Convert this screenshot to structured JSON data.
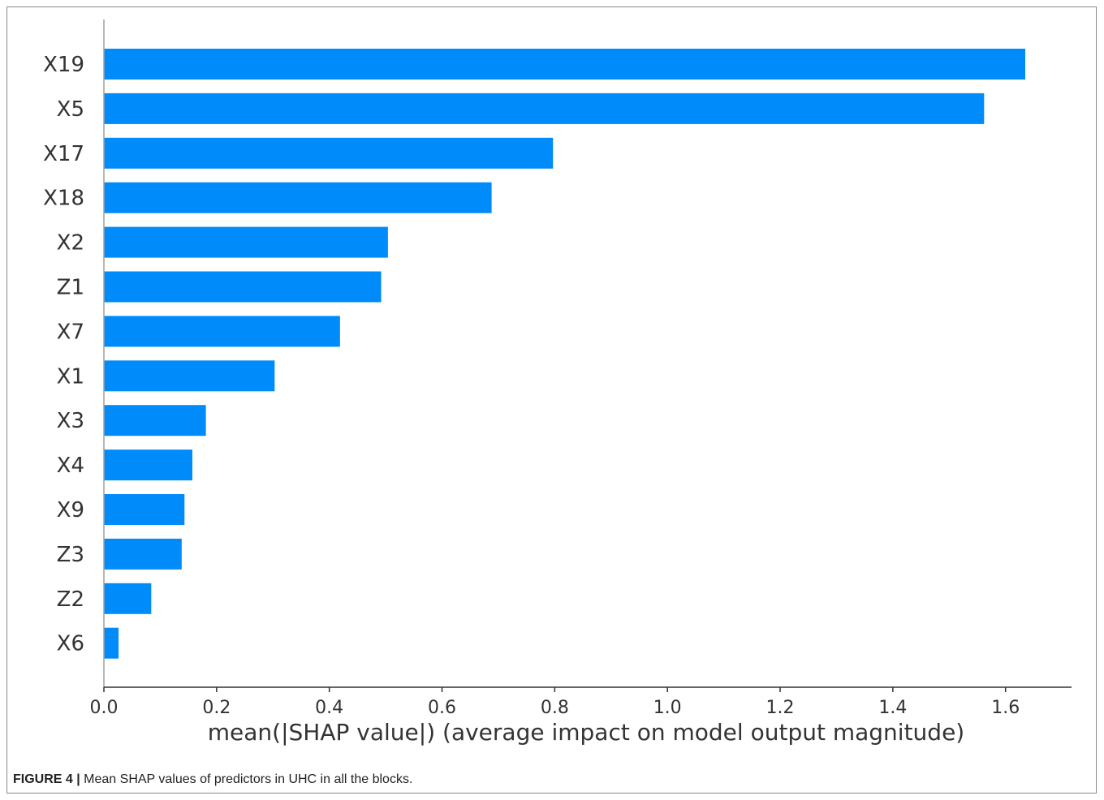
{
  "figure": {
    "label": "FIGURE 4 |",
    "caption": "Mean SHAP values of predictors in UHC in all the blocks."
  },
  "chart_data": {
    "type": "bar",
    "orientation": "horizontal",
    "categories": [
      "X19",
      "X5",
      "X17",
      "X18",
      "X2",
      "Z1",
      "X7",
      "X1",
      "X3",
      "X4",
      "X9",
      "Z3",
      "Z2",
      "X6"
    ],
    "values": [
      1.635,
      1.562,
      0.797,
      0.688,
      0.504,
      0.492,
      0.419,
      0.303,
      0.181,
      0.157,
      0.143,
      0.138,
      0.084,
      0.026
    ],
    "xlabel": "mean(|SHAP value|) (average impact on model output magnitude)",
    "ylabel": "",
    "xlim": [
      0,
      1.72
    ],
    "xticks": [
      "0.0",
      "0.2",
      "0.4",
      "0.6",
      "0.8",
      "1.0",
      "1.2",
      "1.4",
      "1.6"
    ],
    "bar_color": "#008bfb",
    "axis_color": "#333333",
    "grid": false
  }
}
